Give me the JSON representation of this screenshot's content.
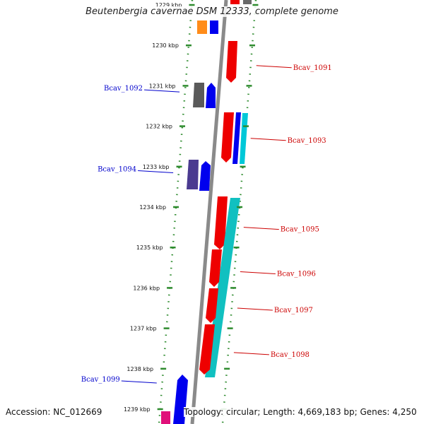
{
  "title": "Beutenbergia cavernae DSM 12333, complete genome",
  "footer": {
    "accession": "Accession: NC_012669",
    "topology": "Topology: circular; Length: 4,669,183 bp; Genes: 4,250"
  },
  "colors": {
    "backbone": "#8a8a8a",
    "ruler": "#2e8b2e",
    "label_forward": "#cc0000",
    "label_reverse": "#0000cc"
  },
  "kbp_ticks": [
    {
      "label": "1229 kbp",
      "pos_kbp": 1229
    },
    {
      "label": "1230 kbp",
      "pos_kbp": 1230
    },
    {
      "label": "1231 kbp",
      "pos_kbp": 1231
    },
    {
      "label": "1232 kbp",
      "pos_kbp": 1232
    },
    {
      "label": "1233 kbp",
      "pos_kbp": 1233
    },
    {
      "label": "1234 kbp",
      "pos_kbp": 1234
    },
    {
      "label": "1235 kbp",
      "pos_kbp": 1235
    },
    {
      "label": "1236 kbp",
      "pos_kbp": 1236
    },
    {
      "label": "1237 kbp",
      "pos_kbp": 1237
    },
    {
      "label": "1238 kbp",
      "pos_kbp": 1238
    },
    {
      "label": "1239 kbp",
      "pos_kbp": 1239
    }
  ],
  "gene_labels": [
    {
      "name": "Bcav_1091",
      "strand": "forward",
      "pos_kbp": 1230.5
    },
    {
      "name": "Bcav_1092",
      "strand": "reverse",
      "pos_kbp": 1231.1
    },
    {
      "name": "Bcav_1093",
      "strand": "forward",
      "pos_kbp": 1232.3
    },
    {
      "name": "Bcav_1094",
      "strand": "reverse",
      "pos_kbp": 1233.1
    },
    {
      "name": "Bcav_1095",
      "strand": "forward",
      "pos_kbp": 1234.5
    },
    {
      "name": "Bcav_1096",
      "strand": "forward",
      "pos_kbp": 1235.6
    },
    {
      "name": "Bcav_1097",
      "strand": "forward",
      "pos_kbp": 1236.5
    },
    {
      "name": "Bcav_1098",
      "strand": "forward",
      "pos_kbp": 1237.6
    },
    {
      "name": "Bcav_1099",
      "strand": "reverse",
      "pos_kbp": 1238.3
    }
  ]
}
